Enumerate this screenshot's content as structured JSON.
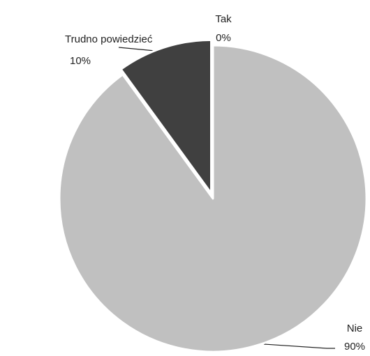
{
  "chart_data": {
    "type": "pie",
    "categories": [
      "Tak",
      "Nie",
      "Trudno powiedzieć"
    ],
    "values": [
      0,
      90,
      10
    ],
    "value_labels": [
      "0%",
      "90%",
      "10%"
    ],
    "colors": [
      "#7f7f7f",
      "#c0c0c0",
      "#404040"
    ]
  }
}
